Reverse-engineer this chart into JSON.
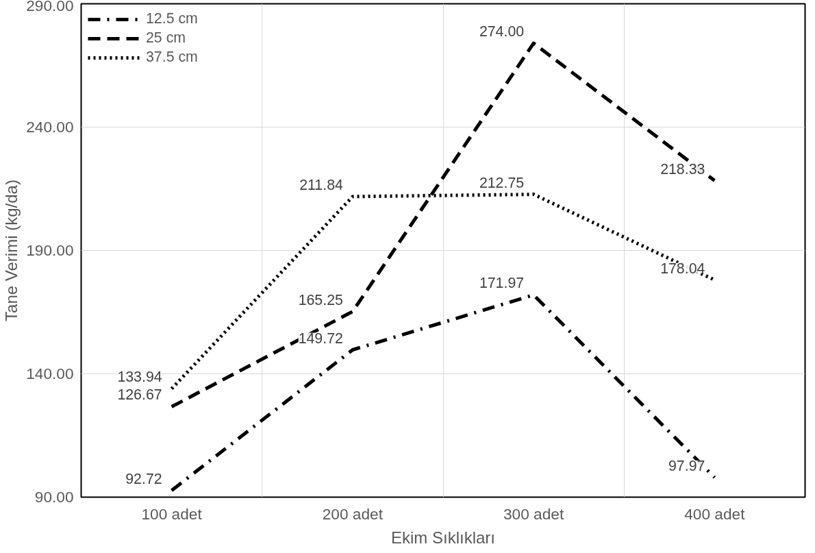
{
  "chart_data": {
    "type": "line",
    "xlabel": "Ekim Sıklıkları",
    "ylabel": "Tane Verimi (kg/da)",
    "categories": [
      "100 adet",
      "200 adet",
      "300 adet",
      "400 adet"
    ],
    "series": [
      {
        "name": "12.5 cm",
        "color": "#000000",
        "line_style": "dashdot",
        "values": [
          92.72,
          149.72,
          171.97,
          97.97
        ],
        "value_labels": [
          "92.72",
          "149.72",
          "171.97",
          "97.97"
        ]
      },
      {
        "name": "25 cm",
        "color": "#000000",
        "line_style": "dashed",
        "values": [
          126.67,
          165.25,
          274.0,
          218.33
        ],
        "value_labels": [
          "126.67",
          "165.25",
          "274.00",
          "218.33"
        ]
      },
      {
        "name": "37.5 cm",
        "color": "#000000",
        "line_style": "dotted",
        "values": [
          133.94,
          211.84,
          212.75,
          178.04
        ],
        "value_labels": [
          "133.94",
          "211.84",
          "212.75",
          "178.04"
        ]
      }
    ],
    "ylim": [
      90,
      290
    ],
    "yticks": [
      {
        "value": 90,
        "label": "90.00"
      },
      {
        "value": 140,
        "label": "140.00"
      },
      {
        "value": 190,
        "label": "190.00"
      },
      {
        "value": 240,
        "label": "240.00"
      },
      {
        "value": 290,
        "label": "290.00"
      }
    ],
    "grid": true,
    "legend": "top left",
    "marker": "none"
  }
}
